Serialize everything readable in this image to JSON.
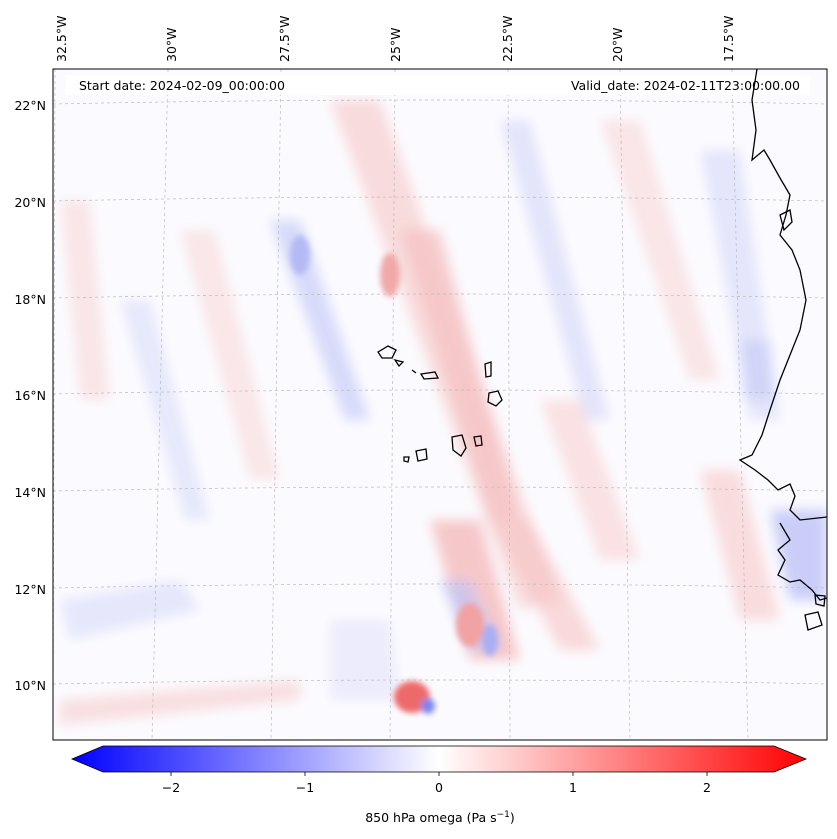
{
  "map": {
    "start_date": "Start date: 2024-02-09_00:00:00",
    "valid_date": "Valid_date: 2024-02-11T23:00:00.00",
    "lon_labels": [
      "32.5°W",
      "30°W",
      "27.5°W",
      "25°W",
      "22.5°W",
      "20°W",
      "17.5°W"
    ],
    "lat_labels": [
      "22°N",
      "20°N",
      "18°N",
      "16°N",
      "14°N",
      "12°N",
      "10°N"
    ]
  },
  "colorbar": {
    "label": "850 hPa omega (Pa s",
    "label_exp": "−1",
    "label_close": ")",
    "ticks": [
      "−2",
      "−1",
      "0",
      "1",
      "2"
    ],
    "colors": {
      "negative": "#0000ff",
      "zero": "#ffffff",
      "positive": "#ff0000"
    }
  }
}
